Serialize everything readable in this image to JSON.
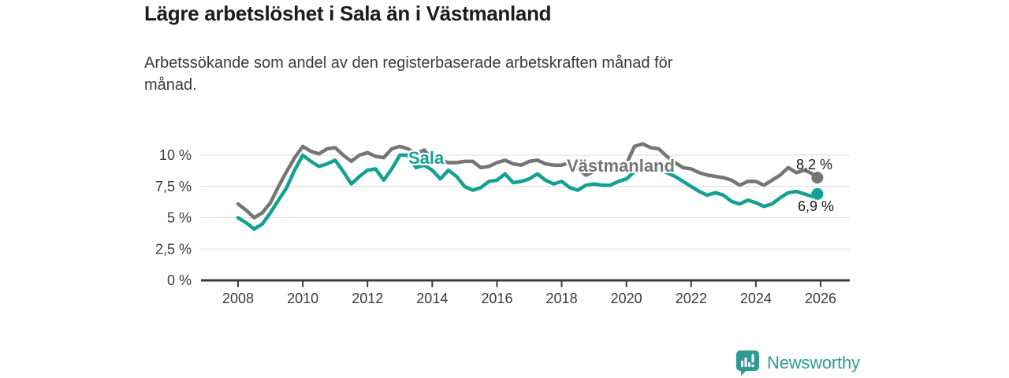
{
  "chart_data": {
    "type": "line",
    "title": "Lägre arbetslöshet i Sala än i Västmanland",
    "subtitle": "Arbetssökande som andel av den registerbaserade arbetskraften månad för månad.",
    "unit": "%",
    "grid": true,
    "legend_position": "inline-labels",
    "xlabel": "",
    "ylabel": "",
    "xlim": [
      2007.5,
      2026.9
    ],
    "ylim": [
      0,
      11.3
    ],
    "yticks": [
      {
        "value": 0,
        "label": "0 %"
      },
      {
        "value": 2.5,
        "label": "2,5 %"
      },
      {
        "value": 5,
        "label": "5 %"
      },
      {
        "value": 7.5,
        "label": "7,5 %"
      },
      {
        "value": 10,
        "label": "10 %"
      }
    ],
    "xticks": [
      {
        "value": 2008,
        "label": "2008"
      },
      {
        "value": 2010,
        "label": "2010"
      },
      {
        "value": 2012,
        "label": "2012"
      },
      {
        "value": 2014,
        "label": "2014"
      },
      {
        "value": 2016,
        "label": "2016"
      },
      {
        "value": 2018,
        "label": "2018"
      },
      {
        "value": 2020,
        "label": "2020"
      },
      {
        "value": 2022,
        "label": "2022"
      },
      {
        "value": 2024,
        "label": "2024"
      },
      {
        "value": 2026,
        "label": "2026"
      }
    ],
    "x": [
      2008,
      2008.25,
      2008.5,
      2008.75,
      2009,
      2009.25,
      2009.5,
      2009.75,
      2010,
      2010.25,
      2010.5,
      2010.75,
      2011,
      2011.25,
      2011.5,
      2011.75,
      2012,
      2012.25,
      2012.5,
      2012.75,
      2013,
      2013.25,
      2013.5,
      2013.75,
      2014,
      2014.25,
      2014.5,
      2014.75,
      2015,
      2015.25,
      2015.5,
      2015.75,
      2016,
      2016.25,
      2016.5,
      2016.75,
      2017,
      2017.25,
      2017.5,
      2017.75,
      2018,
      2018.25,
      2018.5,
      2018.75,
      2019,
      2019.25,
      2019.5,
      2019.75,
      2020,
      2020.25,
      2020.5,
      2020.75,
      2021,
      2021.25,
      2021.5,
      2021.75,
      2022,
      2022.25,
      2022.5,
      2022.75,
      2023,
      2023.25,
      2023.5,
      2023.75,
      2024,
      2024.25,
      2024.5,
      2024.75,
      2025,
      2025.25,
      2025.5,
      2025.75,
      2025.9
    ],
    "series": [
      {
        "name": "Västmanland",
        "color": "#757575",
        "end_label": "8,2 %",
        "end_value": 8.2,
        "values": [
          6.1,
          5.6,
          5.0,
          5.4,
          6.2,
          7.5,
          8.7,
          9.8,
          10.7,
          10.3,
          10.1,
          10.5,
          10.6,
          10.0,
          9.5,
          10.0,
          10.2,
          9.9,
          9.8,
          10.5,
          10.7,
          10.5,
          10.1,
          10.4,
          9.7,
          9.6,
          9.4,
          9.4,
          9.5,
          9.5,
          9.0,
          9.1,
          9.4,
          9.6,
          9.3,
          9.2,
          9.5,
          9.6,
          9.3,
          9.2,
          9.2,
          9.4,
          8.9,
          8.4,
          8.7,
          9.0,
          8.8,
          9.0,
          9.3,
          10.7,
          10.9,
          10.6,
          10.5,
          9.9,
          9.4,
          9.0,
          8.9,
          8.6,
          8.4,
          8.3,
          8.2,
          8.0,
          7.6,
          7.9,
          7.9,
          7.6,
          8.0,
          8.4,
          9.0,
          8.6,
          8.8,
          8.5,
          8.2
        ]
      },
      {
        "name": "Sala",
        "color": "#12a192",
        "end_label": "6,9 %",
        "end_value": 6.9,
        "values": [
          5.0,
          4.6,
          4.1,
          4.5,
          5.4,
          6.4,
          7.4,
          8.8,
          10.0,
          9.5,
          9.1,
          9.3,
          9.6,
          8.7,
          7.7,
          8.3,
          8.8,
          8.9,
          8.0,
          8.9,
          10.0,
          10.0,
          9.0,
          9.2,
          8.8,
          8.1,
          8.8,
          8.3,
          7.5,
          7.2,
          7.4,
          7.9,
          8.0,
          8.5,
          7.8,
          7.9,
          8.1,
          8.5,
          8.0,
          7.7,
          7.9,
          7.4,
          7.2,
          7.6,
          7.7,
          7.6,
          7.6,
          7.9,
          8.1,
          8.7,
          8.9,
          9.1,
          8.9,
          8.6,
          8.3,
          7.9,
          7.5,
          7.1,
          6.8,
          7.0,
          6.8,
          6.3,
          6.1,
          6.4,
          6.2,
          5.9,
          6.1,
          6.6,
          7.0,
          7.1,
          6.9,
          6.7,
          6.9
        ]
      }
    ]
  },
  "colors": {
    "accent_teal": "#12a192",
    "line_gray": "#757575",
    "grid": "#dcdcdc",
    "axis": "#3b3b3b",
    "tick_text": "#3a3a3a"
  },
  "logo": {
    "text": "Newsworthy",
    "color": "#2f9b93"
  }
}
